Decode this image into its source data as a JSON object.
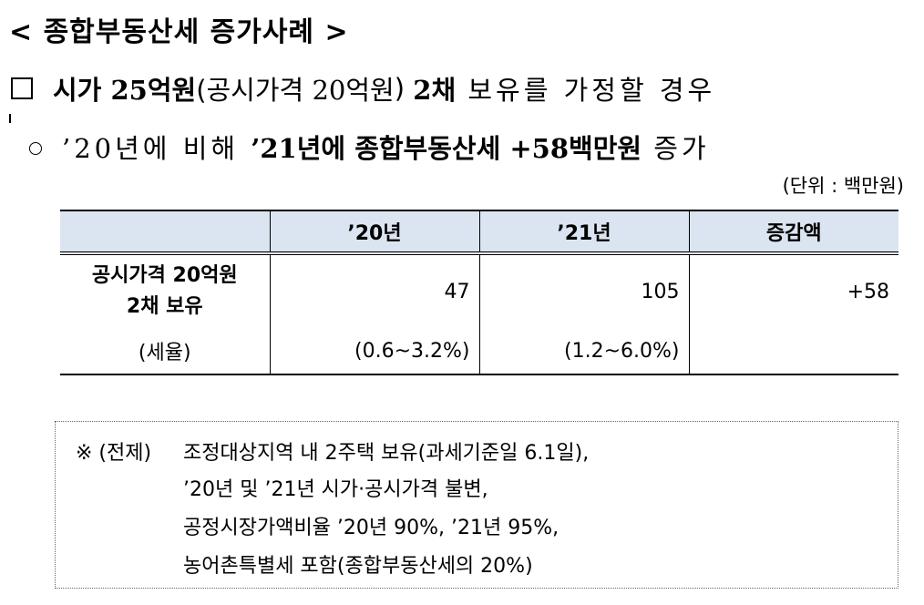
{
  "title": "< 종합부동산세 증가사례 >",
  "heading": {
    "p1": "시가 ",
    "p2": "25억원",
    "p3": "(공시가격 ",
    "p4": "20억원",
    "p5": ") ",
    "p6": "2채",
    "p7": " 보유를 가정할 경우"
  },
  "summary": {
    "p1": "’20년에 비해 ",
    "p2": "’21년에 종합부동산세 +58백만원",
    "p3": " 증가"
  },
  "unit_label": "(단위 : 백만원)",
  "table": {
    "headers": [
      "",
      "’20년",
      "’21년",
      "증감액"
    ],
    "row_label_line1": "공시가격 20억원",
    "row_label_line2": "2채 보유",
    "tax_rate_label": "(세율)",
    "tax_2020": "47",
    "tax_2021": "105",
    "change": "+58",
    "rate_2020": "(0.6~3.2%)",
    "rate_2021": "(1.2~6.0%)"
  },
  "note": {
    "mark": "※ (전제)",
    "line1": "조정대상지역 내 2주택 보유(과세기준일 6.1일),",
    "line2": "’20년 및 ’21년 시가·공시가격 불변,",
    "line3": "공정시장가액비율 ’20년 90%, ’21년 95%,",
    "line4": "농어촌특별세 포함(종합부동산세의 20%)"
  }
}
